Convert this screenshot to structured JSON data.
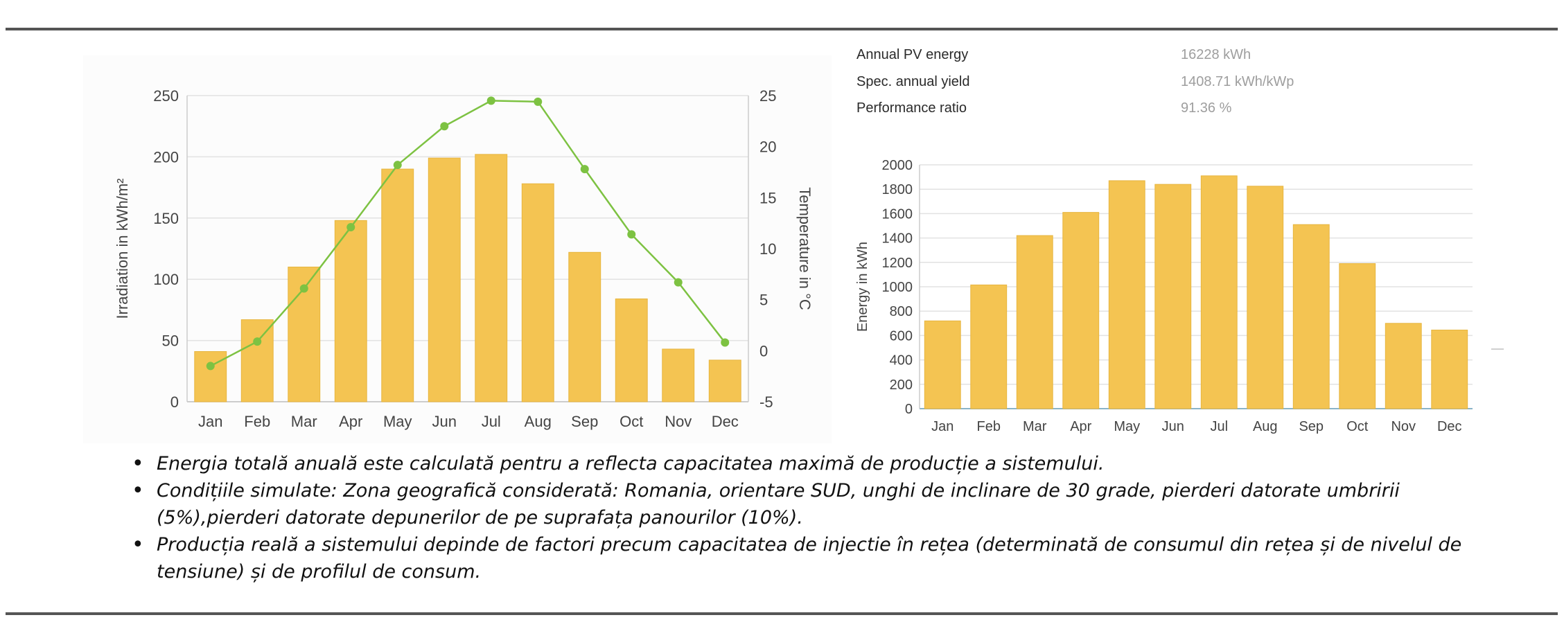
{
  "stats": [
    {
      "label": "Annual PV energy",
      "value": "16228 kWh"
    },
    {
      "label": "Spec. annual yield",
      "value": "1408.71 kWh/kWp"
    },
    {
      "label": "Performance ratio",
      "value": "91.36 %"
    }
  ],
  "notes": [
    "Energia totală anuală este calculată pentru a reflecta capacitatea maximă de producție a sistemului.",
    "Condițiile simulate: Zona geografică considerată: Romania, orientare SUD, unghi de inclinare de 30 grade, pierderi datorate umbririi (5%),pierderi datorate depunerilor de pe suprafața panourilor (10%).",
    "Producția reală a sistemului depinde de factori precum capacitatea de injectie în rețea (determinată de consumul din rețea și de nivelul de tensiune) și de profilul de consum."
  ],
  "colors": {
    "bar": "#f4c452",
    "bar_stroke": "#e7b53f",
    "line": "#7dc242",
    "grid": "#e2e2e2",
    "axis_text": "#444444",
    "rule": "#555555"
  },
  "chart_data": [
    {
      "type": "bar+line",
      "categories": [
        "Jan",
        "Feb",
        "Mar",
        "Apr",
        "May",
        "Jun",
        "Jul",
        "Aug",
        "Sep",
        "Oct",
        "Nov",
        "Dec"
      ],
      "ylabel": "Irradiation in kWh/m²",
      "y2label": "Temperature in °C",
      "ylim": [
        0,
        250
      ],
      "yticks": [
        0,
        50,
        100,
        150,
        200,
        250
      ],
      "y2lim": [
        -5,
        25
      ],
      "y2ticks": [
        -5,
        0,
        5,
        10,
        15,
        20,
        25
      ],
      "grid": true,
      "series": [
        {
          "type": "bar",
          "axis": "left",
          "values": [
            41,
            67,
            110,
            148,
            190,
            199,
            202,
            178,
            122,
            84,
            43,
            34
          ]
        },
        {
          "type": "line",
          "axis": "right",
          "values": [
            -1.5,
            0.9,
            6.1,
            12.1,
            18.2,
            22.0,
            24.5,
            24.4,
            17.8,
            11.4,
            6.7,
            0.8
          ]
        }
      ]
    },
    {
      "type": "bar",
      "categories": [
        "Jan",
        "Feb",
        "Mar",
        "Apr",
        "May",
        "Jun",
        "Jul",
        "Aug",
        "Sep",
        "Oct",
        "Nov",
        "Dec"
      ],
      "ylabel": "Energy in kWh",
      "ylim": [
        0,
        2000
      ],
      "yticks": [
        0,
        200,
        400,
        600,
        800,
        1000,
        1200,
        1400,
        1600,
        1800,
        2000
      ],
      "grid": true,
      "values": [
        720,
        1015,
        1420,
        1610,
        1870,
        1840,
        1910,
        1825,
        1510,
        1190,
        700,
        645
      ]
    }
  ]
}
